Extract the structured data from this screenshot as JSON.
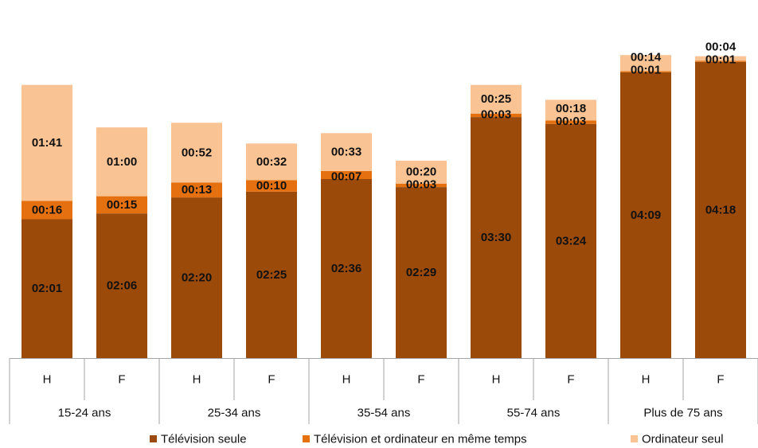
{
  "chart_data": {
    "type": "bar",
    "stacked": true,
    "unit": "hh:mm",
    "groups": [
      "15-24 ans",
      "25-34 ans",
      "35-54 ans",
      "55-74 ans",
      "Plus de 75 ans"
    ],
    "categories": [
      "H",
      "F",
      "H",
      "F",
      "H",
      "F",
      "H",
      "F",
      "H",
      "F"
    ],
    "series": [
      {
        "name": "Télévision seule",
        "color": "#9C4A0A",
        "values": [
          "02:01",
          "02:06",
          "02:20",
          "02:25",
          "02:36",
          "02:29",
          "03:30",
          "03:24",
          "04:09",
          "04:18"
        ]
      },
      {
        "name": "Télévision et ordinateur en même temps",
        "color": "#E5700F",
        "values": [
          "00:16",
          "00:15",
          "00:13",
          "00:10",
          "00:07",
          "00:03",
          "00:03",
          "00:03",
          "00:01",
          "00:01"
        ]
      },
      {
        "name": "Ordinateur seul",
        "color": "#F9C393",
        "values": [
          "01:41",
          "01:00",
          "00:52",
          "00:32",
          "00:33",
          "00:20",
          "00:25",
          "00:18",
          "00:14",
          "00:04"
        ]
      }
    ],
    "legend_position": "bottom",
    "grid": false
  }
}
